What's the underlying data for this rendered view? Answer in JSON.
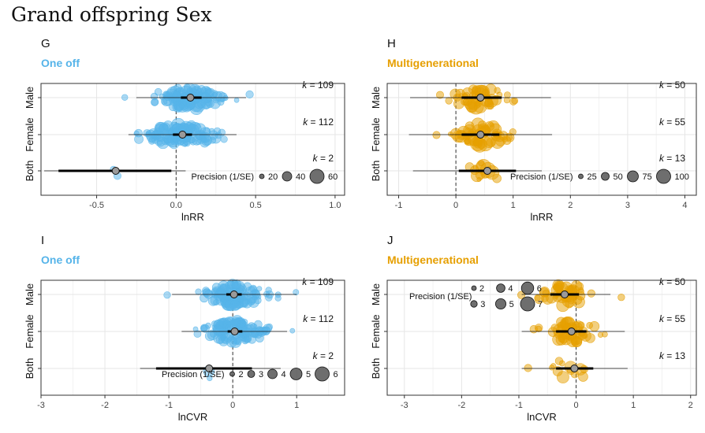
{
  "title": "Grand offspring Sex",
  "chart_data": [
    {
      "id": "G",
      "type": "scatter",
      "subtitle": "One off",
      "color": "#56B4E9",
      "xlabel": "lnRR",
      "xlim": [
        -0.85,
        1.06
      ],
      "xticks": [
        -0.5,
        0.0,
        0.5,
        1.0
      ],
      "categories": [
        "Male",
        "Female",
        "Both"
      ],
      "k": [
        109,
        112,
        2
      ],
      "estimates": [
        {
          "est": 0.09,
          "ci": [
            0.03,
            0.16
          ],
          "pi": [
            -0.25,
            0.44
          ]
        },
        {
          "est": 0.04,
          "ci": [
            -0.02,
            0.1
          ],
          "pi": [
            -0.3,
            0.38
          ]
        },
        {
          "est": -0.38,
          "ci": [
            -0.74,
            -0.03
          ],
          "pi": [
            -0.83,
            0.06
          ]
        }
      ],
      "legend": {
        "title": "Precision (1/SE)",
        "values": [
          20,
          40,
          60
        ],
        "position": "bottom-right"
      },
      "point_spread": [
        0.25,
        0.28,
        0.05
      ],
      "point_sizes": [
        3,
        9
      ]
    },
    {
      "id": "H",
      "type": "scatter",
      "subtitle": "Multigenerational",
      "color": "#E69F00",
      "xlabel": "lnRR",
      "xlim": [
        -1.2,
        4.2
      ],
      "xticks": [
        -1,
        0,
        1,
        2,
        3,
        4
      ],
      "categories": [
        "Male",
        "Female",
        "Both"
      ],
      "k": [
        50,
        55,
        13
      ],
      "estimates": [
        {
          "est": 0.43,
          "ci": [
            0.1,
            0.8
          ],
          "pi": [
            -0.8,
            1.66
          ]
        },
        {
          "est": 0.43,
          "ci": [
            0.1,
            0.76
          ],
          "pi": [
            -0.82,
            1.68
          ]
        },
        {
          "est": 0.55,
          "ci": [
            0.05,
            1.05
          ],
          "pi": [
            -0.75,
            1.5
          ]
        }
      ],
      "legend": {
        "title": "Precision (1/SE)",
        "values": [
          25,
          50,
          75,
          100
        ],
        "position": "bottom-right"
      },
      "point_spread": [
        0.6,
        0.6,
        0.35
      ],
      "point_sizes": [
        2.5,
        10
      ]
    },
    {
      "id": "I",
      "type": "scatter",
      "subtitle": "One off",
      "color": "#56B4E9",
      "xlabel": "lnCVR",
      "xlim": [
        -3.0,
        1.75
      ],
      "xticks": [
        -3,
        -2,
        -1,
        0,
        1
      ],
      "categories": [
        "Male",
        "Female",
        "Both"
      ],
      "k": [
        109,
        112,
        2
      ],
      "estimates": [
        {
          "est": 0.02,
          "ci": [
            -0.1,
            0.14
          ],
          "pi": [
            -0.95,
            1.0
          ]
        },
        {
          "est": 0.03,
          "ci": [
            -0.08,
            0.15
          ],
          "pi": [
            -0.8,
            0.85
          ]
        },
        {
          "est": -0.37,
          "ci": [
            -1.2,
            0.3
          ],
          "pi": [
            -1.45,
            0.75
          ]
        }
      ],
      "legend": {
        "title": "Precision (1/SE)",
        "values": [
          2,
          3,
          4,
          5,
          6
        ],
        "position": "bottom-right"
      },
      "point_spread": [
        0.55,
        0.55,
        0.05
      ],
      "point_sizes": [
        3,
        8
      ]
    },
    {
      "id": "J",
      "type": "scatter",
      "subtitle": "Multigenerational",
      "color": "#E69F00",
      "xlabel": "lnCVR",
      "xlim": [
        -3.3,
        2.1
      ],
      "xticks": [
        -3,
        -2,
        -1,
        0,
        1,
        2
      ],
      "categories": [
        "Male",
        "Female",
        "Both"
      ],
      "k": [
        50,
        55,
        13
      ],
      "estimates": [
        {
          "est": -0.2,
          "ci": [
            -0.45,
            0.05
          ],
          "pi": [
            -0.95,
            0.6
          ]
        },
        {
          "est": -0.08,
          "ci": [
            -0.35,
            0.18
          ],
          "pi": [
            -0.95,
            0.85
          ]
        },
        {
          "est": -0.03,
          "ci": [
            -0.35,
            0.3
          ],
          "pi": [
            -0.95,
            0.9
          ]
        }
      ],
      "legend": {
        "title": "Precision (1/SE)",
        "values": [
          2,
          3,
          4,
          5,
          6,
          7
        ],
        "position": "top-left"
      },
      "point_spread": [
        0.5,
        0.5,
        0.45
      ],
      "point_sizes": [
        3,
        9
      ]
    }
  ]
}
